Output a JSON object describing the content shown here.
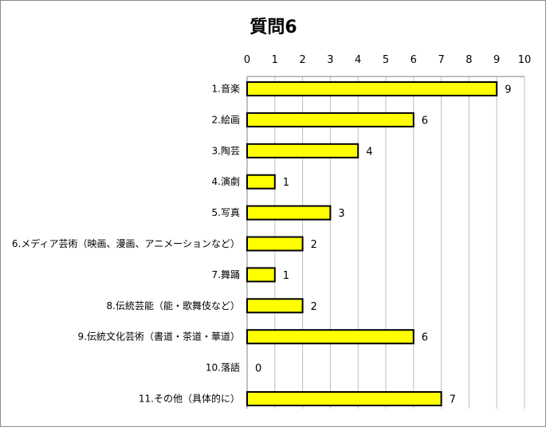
{
  "chart_data": {
    "type": "bar",
    "orientation": "horizontal",
    "title": "質問6",
    "categories": [
      "1.音楽",
      "2.絵画",
      "3.陶芸",
      "4.演劇",
      "5.写真",
      "6.メディア芸術（映画、漫画、アニメーションなど）",
      "7.舞踊",
      "8.伝統芸能（能・歌舞伎など）",
      "9.伝統文化芸術（書道・茶道・華道）",
      "10.落語",
      "11.その他（具体的に）"
    ],
    "values": [
      9,
      6,
      4,
      1,
      3,
      2,
      1,
      2,
      6,
      0,
      7
    ],
    "xlim": [
      0,
      10
    ],
    "xticks": [
      0,
      1,
      2,
      3,
      4,
      5,
      6,
      7,
      8,
      9,
      10
    ],
    "x_axis_position": "top",
    "grid": true,
    "legend": "none",
    "colors": {
      "bar_fill": "#ffff00",
      "bar_stroke": "#000000",
      "grid": "#bfbfbf",
      "axis": "#808080"
    }
  }
}
